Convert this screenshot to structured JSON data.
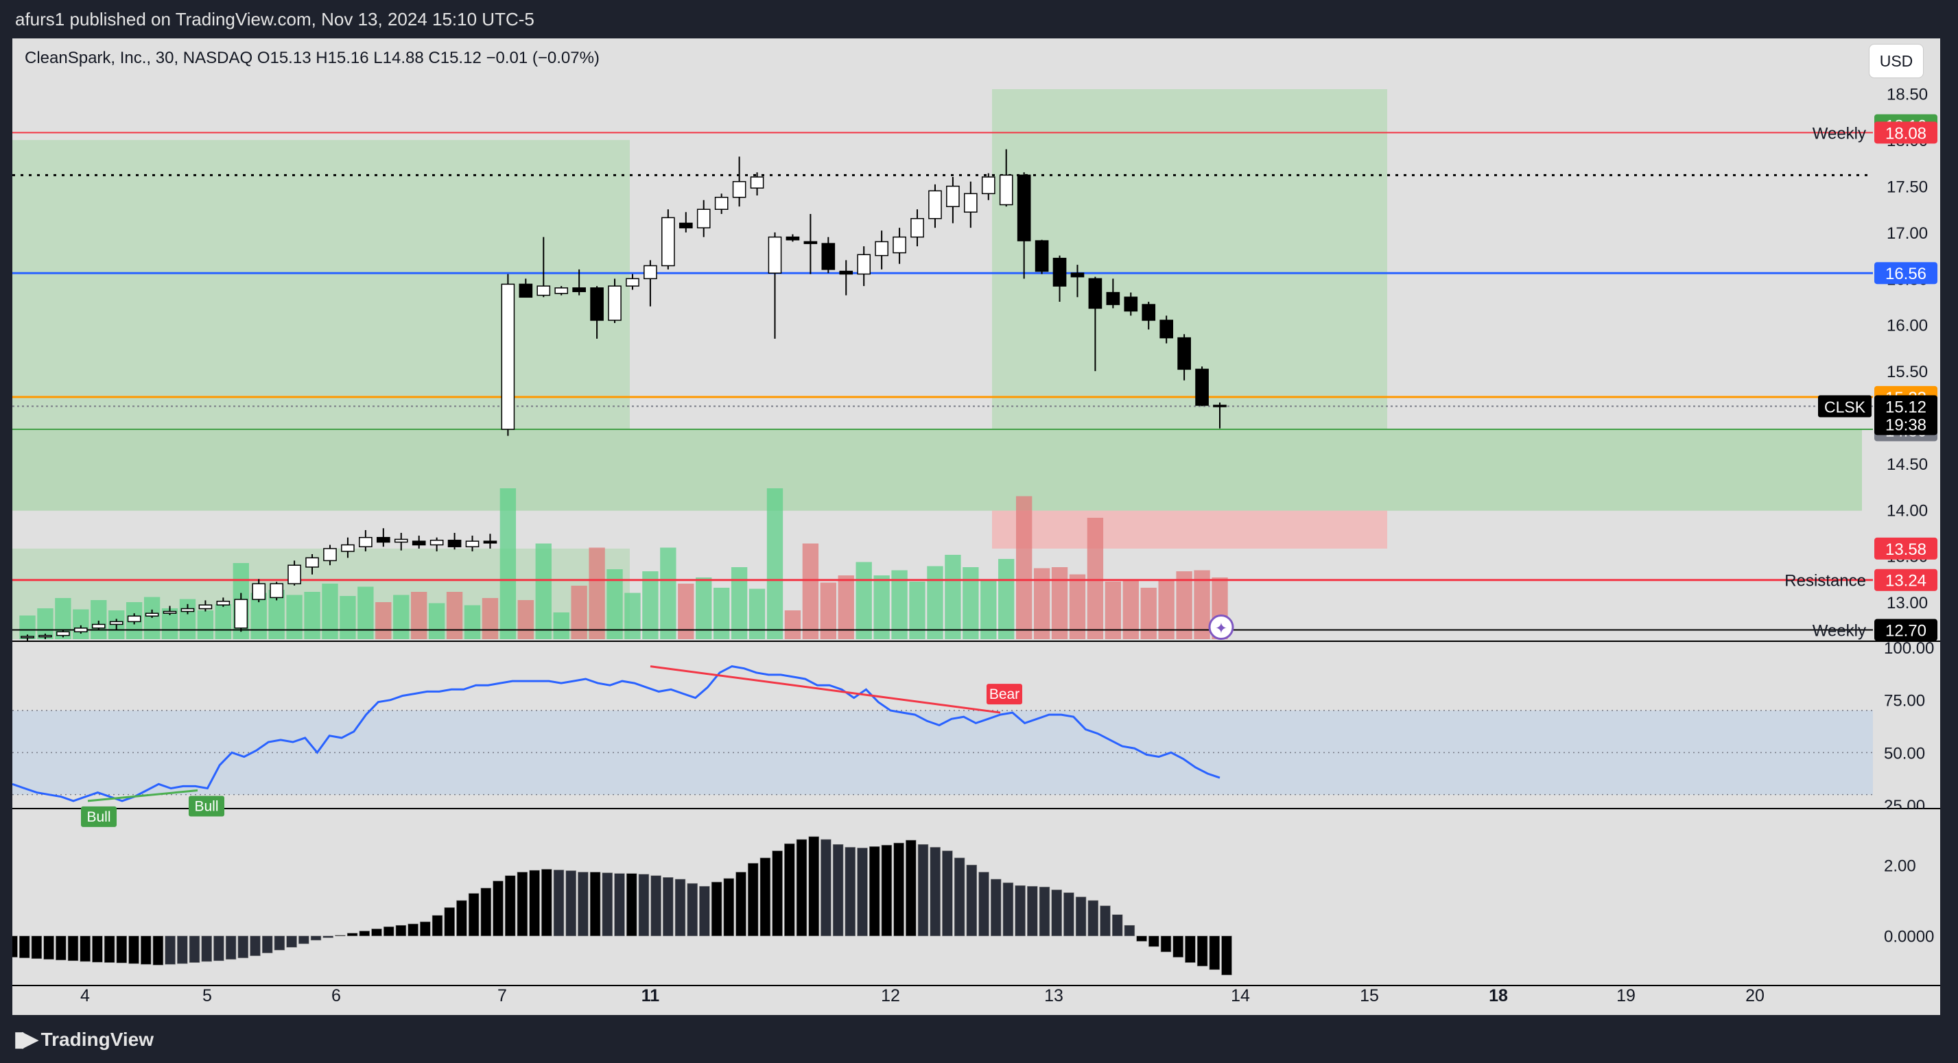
{
  "header": {
    "published_text": "afurs1 published on TradingView.com, Nov 13, 2024 15:10 UTC-5"
  },
  "legend": {
    "symbol": "CleanSpark, Inc., 30, NASDAQ",
    "o_label": "O",
    "o_value": "15.13",
    "h_label": "H",
    "h_value": "15.16",
    "l_label": "L",
    "l_value": "14.88",
    "c_label": "C",
    "c_value": "15.12",
    "change": "−0.01 (−0.07%)"
  },
  "currency_button": "USD",
  "footer": {
    "brand": "TradingView"
  },
  "colors": {
    "background": "#e0e0e0",
    "frame": "#1e222d",
    "up_candle": "#ffffff",
    "down_candle": "#000000",
    "volume_up": "#5fd08a",
    "volume_down": "#e07b7b",
    "rsi_line": "#2962ff",
    "weekly_line": "#f23645",
    "blue_level": "#2962ff",
    "orange_level": "#ff9800",
    "green_zone": "#b7d9b7",
    "red_zone": "#f1b6b6"
  },
  "chart_data": [
    {
      "type": "candlestick",
      "title": "CleanSpark, Inc., 30, NASDAQ",
      "x_ticks": [
        "4",
        "5",
        "6",
        "7",
        "11",
        "12",
        "13",
        "14",
        "15",
        "18",
        "19",
        "20"
      ],
      "y_ticks": [
        "18.50",
        "18.00",
        "17.50",
        "17.00",
        "16.50",
        "16.00",
        "15.50",
        "15.00",
        "14.50",
        "14.00",
        "13.50",
        "13.00"
      ],
      "ylim": [
        12.6,
        18.55
      ],
      "last_price": {
        "symbol": "CLSK",
        "price": "15.12",
        "countdown": "19:38"
      },
      "price_labels": [
        {
          "text": "18.16",
          "value": 18.16,
          "color": "#43a047"
        },
        {
          "text": "18.08",
          "value": 18.08,
          "color": "#f23645"
        },
        {
          "text": "16.56",
          "value": 16.56,
          "color": "#2962ff"
        },
        {
          "text": "15.22",
          "value": 15.22,
          "color": "#ff9800"
        },
        {
          "text": "14.87",
          "value": 14.87,
          "color": "#43a047"
        },
        {
          "text": "14.86",
          "value": 14.86,
          "color": "#787b86"
        },
        {
          "text": "13.58",
          "value": 13.58,
          "color": "#f23645"
        },
        {
          "text": "13.24",
          "value": 13.24,
          "color": "#f23645"
        },
        {
          "text": "12.70",
          "value": 12.7,
          "color": "#000000"
        }
      ],
      "level_labels": [
        {
          "text": "Weekly",
          "value": 18.08
        },
        {
          "text": "Resistance",
          "value": 13.24
        },
        {
          "text": "Weekly",
          "value": 12.7
        }
      ],
      "candles": [
        {
          "o": 12.62,
          "h": 12.65,
          "l": 12.58,
          "c": 12.63
        },
        {
          "o": 12.63,
          "h": 12.66,
          "l": 12.6,
          "c": 12.64
        },
        {
          "o": 12.64,
          "h": 12.7,
          "l": 12.62,
          "c": 12.68
        },
        {
          "o": 12.68,
          "h": 12.75,
          "l": 12.66,
          "c": 12.72
        },
        {
          "o": 12.72,
          "h": 12.8,
          "l": 12.7,
          "c": 12.76
        },
        {
          "o": 12.76,
          "h": 12.82,
          "l": 12.7,
          "c": 12.79
        },
        {
          "o": 12.79,
          "h": 12.88,
          "l": 12.76,
          "c": 12.85
        },
        {
          "o": 12.85,
          "h": 12.92,
          "l": 12.83,
          "c": 12.88
        },
        {
          "o": 12.88,
          "h": 12.96,
          "l": 12.86,
          "c": 12.9
        },
        {
          "o": 12.9,
          "h": 12.98,
          "l": 12.87,
          "c": 12.93
        },
        {
          "o": 12.93,
          "h": 13.02,
          "l": 12.9,
          "c": 12.97
        },
        {
          "o": 12.97,
          "h": 13.05,
          "l": 12.95,
          "c": 13.01
        },
        {
          "o": 12.72,
          "h": 13.1,
          "l": 12.68,
          "c": 13.03
        },
        {
          "o": 13.03,
          "h": 13.25,
          "l": 13.0,
          "c": 13.2
        },
        {
          "o": 13.05,
          "h": 13.22,
          "l": 13.02,
          "c": 13.2
        },
        {
          "o": 13.2,
          "h": 13.45,
          "l": 13.18,
          "c": 13.4
        },
        {
          "o": 13.38,
          "h": 13.52,
          "l": 13.3,
          "c": 13.48
        },
        {
          "o": 13.45,
          "h": 13.62,
          "l": 13.4,
          "c": 13.58
        },
        {
          "o": 13.55,
          "h": 13.7,
          "l": 13.48,
          "c": 13.62
        },
        {
          "o": 13.6,
          "h": 13.78,
          "l": 13.55,
          "c": 13.7
        },
        {
          "o": 13.7,
          "h": 13.8,
          "l": 13.6,
          "c": 13.65
        },
        {
          "o": 13.65,
          "h": 13.75,
          "l": 13.56,
          "c": 13.68
        },
        {
          "o": 13.66,
          "h": 13.72,
          "l": 13.58,
          "c": 13.62
        },
        {
          "o": 13.62,
          "h": 13.7,
          "l": 13.55,
          "c": 13.67
        },
        {
          "o": 13.67,
          "h": 13.75,
          "l": 13.57,
          "c": 13.6
        },
        {
          "o": 13.6,
          "h": 13.72,
          "l": 13.55,
          "c": 13.66
        },
        {
          "o": 13.66,
          "h": 13.74,
          "l": 13.58,
          "c": 13.64
        },
        {
          "o": 14.87,
          "h": 16.55,
          "l": 14.8,
          "c": 16.44
        },
        {
          "o": 16.44,
          "h": 16.5,
          "l": 16.32,
          "c": 16.3
        },
        {
          "o": 16.32,
          "h": 16.95,
          "l": 16.3,
          "c": 16.42
        },
        {
          "o": 16.34,
          "h": 16.42,
          "l": 16.32,
          "c": 16.4
        },
        {
          "o": 16.4,
          "h": 16.6,
          "l": 16.32,
          "c": 16.36
        },
        {
          "o": 16.4,
          "h": 16.42,
          "l": 15.85,
          "c": 16.05
        },
        {
          "o": 16.05,
          "h": 16.5,
          "l": 16.02,
          "c": 16.42
        },
        {
          "o": 16.42,
          "h": 16.55,
          "l": 16.38,
          "c": 16.5
        },
        {
          "o": 16.5,
          "h": 16.7,
          "l": 16.2,
          "c": 16.64
        },
        {
          "o": 16.64,
          "h": 17.25,
          "l": 16.6,
          "c": 17.16
        },
        {
          "o": 17.1,
          "h": 17.22,
          "l": 17.0,
          "c": 17.05
        },
        {
          "o": 17.05,
          "h": 17.35,
          "l": 16.95,
          "c": 17.25
        },
        {
          "o": 17.25,
          "h": 17.42,
          "l": 17.2,
          "c": 17.38
        },
        {
          "o": 17.38,
          "h": 17.82,
          "l": 17.28,
          "c": 17.55
        },
        {
          "o": 17.48,
          "h": 17.65,
          "l": 17.4,
          "c": 17.6
        },
        {
          "o": 16.56,
          "h": 17.0,
          "l": 15.85,
          "c": 16.95
        },
        {
          "o": 16.95,
          "h": 16.98,
          "l": 16.9,
          "c": 16.92
        },
        {
          "o": 16.9,
          "h": 17.2,
          "l": 16.55,
          "c": 16.88
        },
        {
          "o": 16.88,
          "h": 16.95,
          "l": 16.56,
          "c": 16.6
        },
        {
          "o": 16.58,
          "h": 16.7,
          "l": 16.32,
          "c": 16.55
        },
        {
          "o": 16.55,
          "h": 16.85,
          "l": 16.42,
          "c": 16.76
        },
        {
          "o": 16.75,
          "h": 17.02,
          "l": 16.6,
          "c": 16.9
        },
        {
          "o": 16.78,
          "h": 17.05,
          "l": 16.66,
          "c": 16.95
        },
        {
          "o": 16.95,
          "h": 17.25,
          "l": 16.85,
          "c": 17.15
        },
        {
          "o": 17.15,
          "h": 17.52,
          "l": 17.05,
          "c": 17.45
        },
        {
          "o": 17.28,
          "h": 17.6,
          "l": 17.1,
          "c": 17.5
        },
        {
          "o": 17.22,
          "h": 17.55,
          "l": 17.05,
          "c": 17.42
        },
        {
          "o": 17.42,
          "h": 17.64,
          "l": 17.35,
          "c": 17.6
        },
        {
          "o": 17.3,
          "h": 17.9,
          "l": 17.28,
          "c": 17.62
        },
        {
          "o": 17.62,
          "h": 17.65,
          "l": 16.5,
          "c": 16.91
        },
        {
          "o": 16.91,
          "h": 16.92,
          "l": 16.55,
          "c": 16.58
        },
        {
          "o": 16.72,
          "h": 16.75,
          "l": 16.25,
          "c": 16.42
        },
        {
          "o": 16.56,
          "h": 16.65,
          "l": 16.3,
          "c": 16.52
        },
        {
          "o": 16.5,
          "h": 16.52,
          "l": 15.5,
          "c": 16.18
        },
        {
          "o": 16.35,
          "h": 16.5,
          "l": 16.18,
          "c": 16.22
        },
        {
          "o": 16.3,
          "h": 16.35,
          "l": 16.1,
          "c": 16.15
        },
        {
          "o": 16.22,
          "h": 16.25,
          "l": 15.95,
          "c": 16.05
        },
        {
          "o": 16.05,
          "h": 16.1,
          "l": 15.8,
          "c": 15.86
        },
        {
          "o": 15.86,
          "h": 15.9,
          "l": 15.4,
          "c": 15.52
        },
        {
          "o": 15.52,
          "h": 15.55,
          "l": 15.12,
          "c": 15.13
        },
        {
          "o": 15.13,
          "h": 15.16,
          "l": 14.88,
          "c": 15.12
        }
      ]
    },
    {
      "type": "line",
      "title": "RSI",
      "y_ticks": [
        "100.00",
        "75.00",
        "50.00",
        "25.00"
      ],
      "ylim": [
        25,
        100
      ],
      "band": [
        30,
        70
      ],
      "annotations": [
        "Bull",
        "Bull",
        "Bear"
      ],
      "values": [
        35,
        33,
        31,
        30,
        29,
        27,
        29,
        31,
        29,
        27,
        29,
        32,
        35,
        33,
        34,
        34,
        33,
        44,
        50,
        48,
        51,
        55,
        56,
        55,
        57,
        50,
        58,
        57,
        60,
        68,
        74,
        75,
        77,
        78,
        79,
        79,
        80,
        80,
        82,
        82,
        83,
        84,
        84,
        84,
        84,
        83,
        84,
        85,
        83,
        82,
        84,
        83,
        81,
        79,
        80,
        78,
        76,
        81,
        88,
        91,
        90,
        88,
        87,
        87,
        86,
        85,
        82,
        82,
        80,
        76,
        80,
        74,
        70,
        69,
        68,
        65,
        63,
        66,
        67,
        64,
        66,
        68,
        69,
        64,
        66,
        68,
        68,
        67,
        61,
        59,
        56,
        53,
        52,
        49,
        48,
        50,
        47,
        43,
        40,
        38
      ]
    },
    {
      "type": "bar",
      "title": "Momentum histogram",
      "y_ticks": [
        "2.00",
        "0.0000"
      ],
      "ylim": [
        -1.3,
        3.3
      ],
      "values": [
        -0.6,
        -0.62,
        -0.64,
        -0.66,
        -0.68,
        -0.7,
        -0.72,
        -0.74,
        -0.75,
        -0.76,
        -0.78,
        -0.8,
        -0.82,
        -0.8,
        -0.78,
        -0.75,
        -0.72,
        -0.7,
        -0.66,
        -0.62,
        -0.56,
        -0.48,
        -0.4,
        -0.32,
        -0.22,
        -0.12,
        -0.05,
        0.02,
        0.08,
        0.14,
        0.2,
        0.26,
        0.3,
        0.34,
        0.4,
        0.58,
        0.8,
        1.0,
        1.2,
        1.35,
        1.55,
        1.7,
        1.8,
        1.85,
        1.88,
        1.86,
        1.84,
        1.8,
        1.8,
        1.78,
        1.76,
        1.76,
        1.74,
        1.7,
        1.65,
        1.6,
        1.48,
        1.4,
        1.52,
        1.62,
        1.8,
        2.05,
        2.2,
        2.4,
        2.6,
        2.72,
        2.8,
        2.72,
        2.58,
        2.5,
        2.48,
        2.52,
        2.56,
        2.62,
        2.7,
        2.58,
        2.5,
        2.4,
        2.2,
        2.0,
        1.8,
        1.6,
        1.5,
        1.42,
        1.4,
        1.38,
        1.3,
        1.22,
        1.1,
        1.0,
        0.85,
        0.6,
        0.3,
        -0.15,
        -0.3,
        -0.45,
        -0.6,
        -0.75,
        -0.85,
        -0.95,
        -1.1
      ]
    }
  ]
}
